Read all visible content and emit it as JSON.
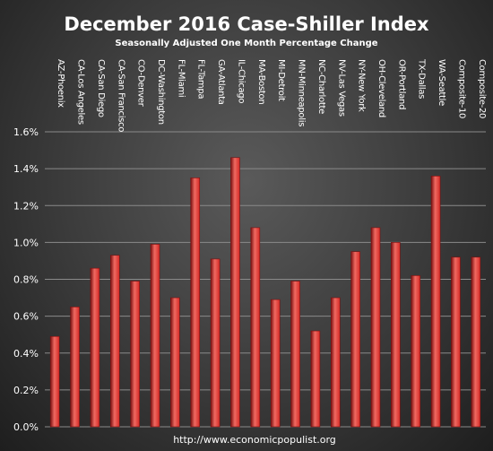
{
  "chart_data": {
    "type": "bar",
    "title": "December 2016 Case-Shiller Index",
    "subtitle": "Seasonally Adjusted One Month Percentage Change",
    "source": "http://www.economicpopulist.org",
    "categories": [
      "AZ-Phoenix",
      "CA-Los Angeles",
      "CA-San Diego",
      "CA-San Francisco",
      "CO-Denver",
      "DC-Washington",
      "FL-Miami",
      "FL-Tampa",
      "GA-Atlanta",
      "IL-Chicago",
      "MA-Boston",
      "MI-Detroit",
      "MN-Minneapolis",
      "NC-Charlotte",
      "NV-Las Vegas",
      "NY-New York",
      "OH-Cleveland",
      "OR-Portland",
      "TX-Dallas",
      "WA-Seattle",
      "Composite-10",
      "Composite-20"
    ],
    "values": [
      0.49,
      0.65,
      0.86,
      0.93,
      0.79,
      0.99,
      0.7,
      1.35,
      0.91,
      1.46,
      1.08,
      0.69,
      0.79,
      0.52,
      0.7,
      0.95,
      1.08,
      1.0,
      0.82,
      1.36,
      0.92,
      0.92
    ],
    "yticks": [
      "0.0%",
      "0.2%",
      "0.4%",
      "0.6%",
      "0.8%",
      "1.0%",
      "1.2%",
      "1.4%",
      "1.6%"
    ],
    "ylim": [
      0,
      1.6
    ],
    "grid": true,
    "legend": "none",
    "colors": {
      "bar": "#d42a26",
      "bar_dark": "#7a1010",
      "bar_light": "#f06a62",
      "grid": "#8a8a8a",
      "text": "#ffffff"
    }
  }
}
